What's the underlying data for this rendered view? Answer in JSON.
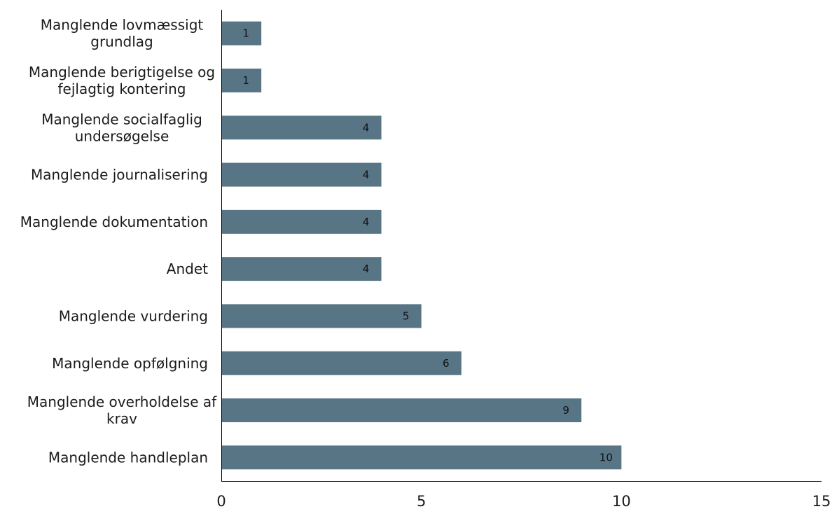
{
  "chart_data": {
    "type": "bar",
    "orientation": "horizontal",
    "categories": [
      [
        "Manglende lovmæssigt",
        "grundlag"
      ],
      [
        "Manglende berigtigelse og",
        "fejlagtig kontering"
      ],
      [
        "Manglende socialfaglig",
        "undersøgelse"
      ],
      [
        "Manglende journalisering"
      ],
      [
        "Manglende dokumentation"
      ],
      [
        "Andet"
      ],
      [
        "Manglende vurdering"
      ],
      [
        "Manglende opfølgning"
      ],
      [
        "Manglende overholdelse af",
        "krav"
      ],
      [
        "Manglende handleplan"
      ]
    ],
    "values": [
      1,
      1,
      4,
      4,
      4,
      4,
      5,
      6,
      9,
      10
    ],
    "x_ticks": [
      0,
      5,
      10,
      15
    ],
    "xlim": [
      0,
      15
    ],
    "title": "",
    "xlabel": "",
    "ylabel": "",
    "grid": false,
    "legend": "none",
    "show_data_labels": true,
    "colors": {
      "bar": "#587586",
      "axis": "#000000",
      "text": "#1a1a1a"
    }
  }
}
